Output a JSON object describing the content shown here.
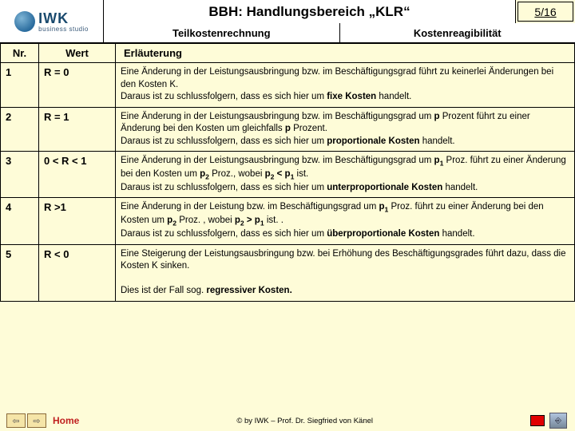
{
  "logo": {
    "name": "IWK",
    "tagline": "business studio"
  },
  "header": {
    "title": "BBH: Handlungsbereich „KLR“",
    "page": "5/16",
    "sub_left": "Teilkostenrechnung",
    "sub_right": "Kostenreagibilität"
  },
  "table": {
    "columns": {
      "nr": "Nr.",
      "wert": "Wert",
      "erl": "Erläuterung"
    },
    "rows": [
      {
        "nr": "1",
        "wert": "R = 0",
        "erl_html": "Eine Änderung in der Leistungsausbringung bzw. im Beschäftigungsgrad führt zu keinerlei Änderungen bei den Kosten K.<br>Daraus ist zu schlussfolgern, dass es sich hier um <b>fixe Kosten</b> handelt."
      },
      {
        "nr": "2",
        "wert": "R = 1",
        "erl_html": "Eine Änderung in der Leistungsausbringung bzw. im Beschäftigungsgrad um <b>p</b> Prozent führt zu einer Änderung bei den Kosten um gleichfalls <b>p</b> Prozent.<br>Daraus ist zu schlussfolgern, dass es sich hier um <b>proportionale Kosten</b> handelt."
      },
      {
        "nr": "3",
        "wert": "0 < R < 1",
        "erl_html": "Eine Änderung in der Leistungsausbringung bzw. im Beschäftigungsgrad um <b>p<sub>1</sub></b> Proz. führt zu einer Änderung bei den Kosten um <b>p<sub>2</sub></b> Proz., wobei <b>p<sub>2</sub> &lt; p<sub>1</sub></b> ist.<br>Daraus ist zu schlussfolgern, dass es sich hier um <b>unterproportionale Kosten</b> handelt."
      },
      {
        "nr": "4",
        "wert": "R >1",
        "erl_html": "Eine Änderung in der Leistung bzw. im Beschäftigungsgrad um <b>p<sub>1</sub></b> Proz. führt zu einer Änderung bei den Kosten um <b>p<sub>2</sub></b> Proz. , wobei <b>p<sub>2</sub> &gt; p<sub>1</sub></b> ist. .<br>Daraus ist zu schlussfolgern, dass es sich hier um <b>überproportionale Kosten</b> handelt."
      },
      {
        "nr": "5",
        "wert": "R < 0",
        "erl_html": "Eine Steigerung der Leistungsausbringung bzw. bei Erhöhung des Beschäftigungsgrades führt dazu, dass die Kosten K sinken.<br><br>Dies ist der Fall sog. <b>regressiver Kosten.</b>"
      }
    ]
  },
  "footer": {
    "home": "Home",
    "copyright": "© by IWK – Prof. Dr. Siegfried von Känel"
  },
  "colors": {
    "page_bg": "#fefcd8",
    "border": "#000000",
    "home_link": "#c02020",
    "red_square": "#e00000"
  }
}
